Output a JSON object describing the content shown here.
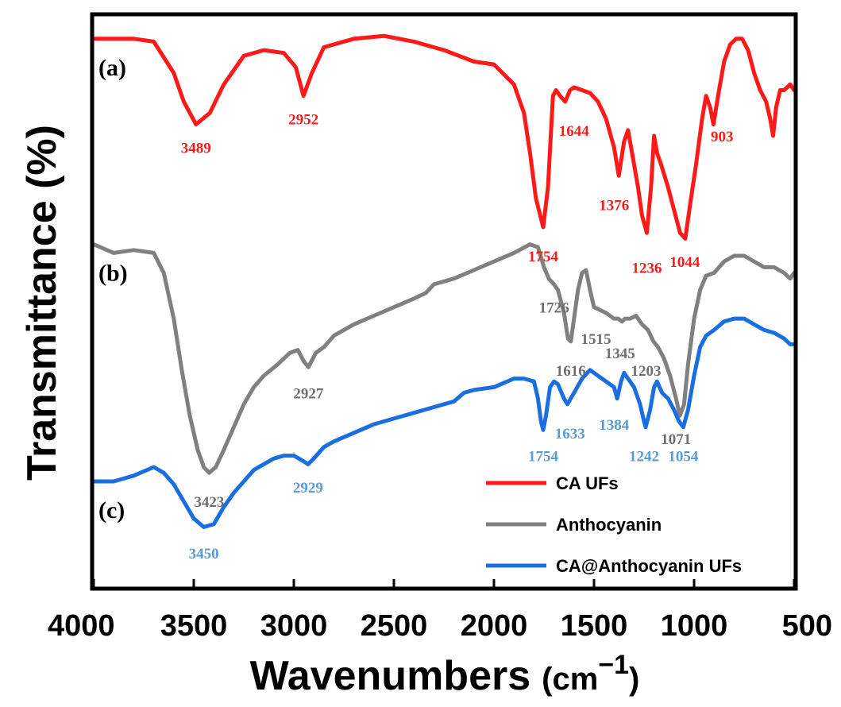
{
  "chart_data": {
    "type": "line",
    "xlabel": "Wavenumbers",
    "xunit_prefix": "(cm",
    "xunit_sup": "−1",
    "xunit_suffix": ")",
    "ylabel": "Transmittance (%)",
    "xlim": [
      4000,
      500
    ],
    "ylim": [
      0,
      100
    ],
    "xticks": [
      4000,
      3500,
      3000,
      2500,
      2000,
      1500,
      1000,
      500
    ],
    "series": [
      {
        "name": "CA UFs",
        "panel": "(a)",
        "color": "#ff1a1a",
        "label_color": "#ff1a1a",
        "points": [
          [
            4000,
            96
          ],
          [
            3800,
            96
          ],
          [
            3700,
            95.5
          ],
          [
            3600,
            90
          ],
          [
            3550,
            85
          ],
          [
            3489,
            81
          ],
          [
            3420,
            83
          ],
          [
            3350,
            88
          ],
          [
            3250,
            93
          ],
          [
            3150,
            94
          ],
          [
            3050,
            93.5
          ],
          [
            2990,
            91
          ],
          [
            2952,
            86
          ],
          [
            2910,
            90
          ],
          [
            2850,
            94.5
          ],
          [
            2700,
            96
          ],
          [
            2550,
            96.5
          ],
          [
            2400,
            95.5
          ],
          [
            2250,
            94
          ],
          [
            2100,
            92
          ],
          [
            2000,
            91.5
          ],
          [
            1900,
            88
          ],
          [
            1850,
            83
          ],
          [
            1820,
            76
          ],
          [
            1790,
            68
          ],
          [
            1754,
            63
          ],
          [
            1730,
            70
          ],
          [
            1705,
            86
          ],
          [
            1690,
            87
          ],
          [
            1670,
            86
          ],
          [
            1644,
            85
          ],
          [
            1620,
            87
          ],
          [
            1600,
            87.5
          ],
          [
            1560,
            87
          ],
          [
            1520,
            86.5
          ],
          [
            1480,
            85
          ],
          [
            1440,
            82
          ],
          [
            1400,
            77
          ],
          [
            1376,
            72
          ],
          [
            1350,
            78
          ],
          [
            1330,
            80
          ],
          [
            1310,
            76
          ],
          [
            1280,
            70
          ],
          [
            1260,
            65
          ],
          [
            1236,
            62
          ],
          [
            1215,
            70
          ],
          [
            1200,
            79
          ],
          [
            1185,
            76
          ],
          [
            1165,
            74
          ],
          [
            1130,
            70
          ],
          [
            1100,
            66
          ],
          [
            1070,
            62
          ],
          [
            1044,
            61
          ],
          [
            1020,
            67
          ],
          [
            990,
            74
          ],
          [
            960,
            82
          ],
          [
            940,
            86
          ],
          [
            920,
            84
          ],
          [
            903,
            81
          ],
          [
            880,
            86
          ],
          [
            850,
            92
          ],
          [
            820,
            95
          ],
          [
            790,
            96
          ],
          [
            760,
            96
          ],
          [
            730,
            94
          ],
          [
            700,
            90
          ],
          [
            670,
            87
          ],
          [
            640,
            85
          ],
          [
            620,
            82
          ],
          [
            605,
            79
          ],
          [
            590,
            84
          ],
          [
            570,
            87
          ],
          [
            550,
            87
          ],
          [
            520,
            88
          ],
          [
            500,
            87
          ]
        ],
        "annotations": [
          {
            "text": "3489",
            "wn": 3489,
            "val": 77
          },
          {
            "text": "2952",
            "wn": 2952,
            "val": 82
          },
          {
            "text": "1644",
            "wn": 1600,
            "val": 80
          },
          {
            "text": "1754",
            "wn": 1754,
            "val": 58
          },
          {
            "text": "1376",
            "wn": 1400,
            "val": 67
          },
          {
            "text": "1236",
            "wn": 1236,
            "val": 56
          },
          {
            "text": "1044",
            "wn": 1046,
            "val": 57
          },
          {
            "text": "903",
            "wn": 860,
            "val": 79
          }
        ]
      },
      {
        "name": "Anthocyanin",
        "panel": "(b)",
        "color": "#808080",
        "label_color": "#6e6e6e",
        "points": [
          [
            4000,
            60
          ],
          [
            3900,
            58.5
          ],
          [
            3800,
            59
          ],
          [
            3700,
            58.5
          ],
          [
            3650,
            55
          ],
          [
            3600,
            47
          ],
          [
            3560,
            38
          ],
          [
            3520,
            30
          ],
          [
            3480,
            24
          ],
          [
            3450,
            21
          ],
          [
            3423,
            20
          ],
          [
            3390,
            21
          ],
          [
            3350,
            24
          ],
          [
            3300,
            28
          ],
          [
            3250,
            32
          ],
          [
            3200,
            35
          ],
          [
            3150,
            37
          ],
          [
            3080,
            39
          ],
          [
            3020,
            41
          ],
          [
            2980,
            41.5
          ],
          [
            2950,
            39.5
          ],
          [
            2927,
            38.5
          ],
          [
            2890,
            41
          ],
          [
            2850,
            42
          ],
          [
            2800,
            44
          ],
          [
            2700,
            46
          ],
          [
            2600,
            47.5
          ],
          [
            2500,
            49
          ],
          [
            2400,
            50.5
          ],
          [
            2340,
            51.5
          ],
          [
            2300,
            53
          ],
          [
            2200,
            54
          ],
          [
            2100,
            55.5
          ],
          [
            2000,
            57
          ],
          [
            1900,
            58.5
          ],
          [
            1820,
            60
          ],
          [
            1780,
            59.5
          ],
          [
            1750,
            56
          ],
          [
            1726,
            54
          ],
          [
            1700,
            53
          ],
          [
            1680,
            52
          ],
          [
            1650,
            48
          ],
          [
            1630,
            43.5
          ],
          [
            1616,
            43
          ],
          [
            1600,
            47
          ],
          [
            1580,
            52
          ],
          [
            1560,
            55
          ],
          [
            1540,
            55.5
          ],
          [
            1520,
            52
          ],
          [
            1500,
            49
          ],
          [
            1470,
            48.5
          ],
          [
            1440,
            48
          ],
          [
            1400,
            47
          ],
          [
            1380,
            47
          ],
          [
            1360,
            46.5
          ],
          [
            1345,
            47
          ],
          [
            1320,
            47
          ],
          [
            1290,
            47.5
          ],
          [
            1260,
            46
          ],
          [
            1230,
            45
          ],
          [
            1203,
            43
          ],
          [
            1180,
            42
          ],
          [
            1150,
            40
          ],
          [
            1120,
            37
          ],
          [
            1090,
            33
          ],
          [
            1071,
            30
          ],
          [
            1050,
            32
          ],
          [
            1030,
            39
          ],
          [
            1000,
            47
          ],
          [
            970,
            52
          ],
          [
            940,
            54.5
          ],
          [
            900,
            55
          ],
          [
            850,
            57
          ],
          [
            800,
            58
          ],
          [
            750,
            58
          ],
          [
            700,
            57
          ],
          [
            650,
            56
          ],
          [
            600,
            56
          ],
          [
            550,
            55
          ],
          [
            520,
            54
          ],
          [
            500,
            55
          ]
        ],
        "annotations": [
          {
            "text": "1726",
            "wn": 1700,
            "val": 49
          },
          {
            "text": "1616",
            "wn": 1616,
            "val": 38
          },
          {
            "text": "1515",
            "wn": 1490,
            "val": 43.5
          },
          {
            "text": "1345",
            "wn": 1370,
            "val": 41
          },
          {
            "text": "1203",
            "wn": 1240,
            "val": 38
          },
          {
            "text": "2927",
            "wn": 2927,
            "val": 34
          },
          {
            "text": "3423",
            "wn": 3423,
            "val": 15
          },
          {
            "text": "1071",
            "wn": 1090,
            "val": 26
          }
        ]
      },
      {
        "name": "CA@Anthocyanin UFs",
        "panel": "(c)",
        "color": "#1a6fe0",
        "label_color": "#5b9bd5",
        "points": [
          [
            4000,
            18.5
          ],
          [
            3900,
            18.5
          ],
          [
            3800,
            19.5
          ],
          [
            3700,
            21
          ],
          [
            3650,
            20
          ],
          [
            3600,
            18
          ],
          [
            3550,
            15
          ],
          [
            3500,
            12
          ],
          [
            3450,
            10.5
          ],
          [
            3400,
            11
          ],
          [
            3350,
            14
          ],
          [
            3300,
            16.5
          ],
          [
            3250,
            18.5
          ],
          [
            3200,
            20.5
          ],
          [
            3100,
            22.5
          ],
          [
            3050,
            23
          ],
          [
            3000,
            23
          ],
          [
            2950,
            22
          ],
          [
            2929,
            21.5
          ],
          [
            2900,
            22.5
          ],
          [
            2850,
            24.5
          ],
          [
            2800,
            25.5
          ],
          [
            2700,
            27
          ],
          [
            2600,
            28.5
          ],
          [
            2500,
            29.5
          ],
          [
            2400,
            30.5
          ],
          [
            2300,
            31.5
          ],
          [
            2200,
            32.5
          ],
          [
            2150,
            34
          ],
          [
            2100,
            34.5
          ],
          [
            2000,
            35
          ],
          [
            1900,
            36.5
          ],
          [
            1850,
            36.5
          ],
          [
            1800,
            36
          ],
          [
            1780,
            33
          ],
          [
            1765,
            29
          ],
          [
            1754,
            27.5
          ],
          [
            1740,
            30
          ],
          [
            1720,
            35
          ],
          [
            1700,
            36
          ],
          [
            1680,
            35.5
          ],
          [
            1650,
            33
          ],
          [
            1633,
            32
          ],
          [
            1600,
            34
          ],
          [
            1560,
            36.5
          ],
          [
            1520,
            38
          ],
          [
            1480,
            37
          ],
          [
            1440,
            36
          ],
          [
            1400,
            35
          ],
          [
            1384,
            33
          ],
          [
            1365,
            36
          ],
          [
            1350,
            37.5
          ],
          [
            1330,
            36.5
          ],
          [
            1300,
            35
          ],
          [
            1270,
            32
          ],
          [
            1250,
            29
          ],
          [
            1242,
            28
          ],
          [
            1220,
            31
          ],
          [
            1200,
            35
          ],
          [
            1185,
            36
          ],
          [
            1160,
            34
          ],
          [
            1130,
            33
          ],
          [
            1100,
            31
          ],
          [
            1075,
            29
          ],
          [
            1054,
            28
          ],
          [
            1030,
            31
          ],
          [
            1000,
            37
          ],
          [
            970,
            42
          ],
          [
            940,
            44
          ],
          [
            900,
            45
          ],
          [
            850,
            46.5
          ],
          [
            800,
            47
          ],
          [
            750,
            47
          ],
          [
            700,
            46
          ],
          [
            650,
            45
          ],
          [
            600,
            44.5
          ],
          [
            550,
            43.5
          ],
          [
            520,
            42.5
          ],
          [
            500,
            42.5
          ]
        ],
        "annotations": [
          {
            "text": "1633",
            "wn": 1620,
            "val": 27
          },
          {
            "text": "1384",
            "wn": 1400,
            "val": 28.5
          },
          {
            "text": "1754",
            "wn": 1754,
            "val": 23
          },
          {
            "text": "1242",
            "wn": 1250,
            "val": 23
          },
          {
            "text": "1054",
            "wn": 1054,
            "val": 23
          },
          {
            "text": "2929",
            "wn": 2929,
            "val": 17.5
          },
          {
            "text": "3450",
            "wn": 3450,
            "val": 6
          }
        ]
      }
    ],
    "legend": {
      "position": "bottom-right",
      "entries": [
        {
          "label": "CA UFs",
          "color": "#ff1a1a"
        },
        {
          "label": "Anthocyanin",
          "color": "#808080"
        },
        {
          "label": "CA@Anthocyanin UFs",
          "color": "#1a6fe0"
        }
      ]
    }
  }
}
